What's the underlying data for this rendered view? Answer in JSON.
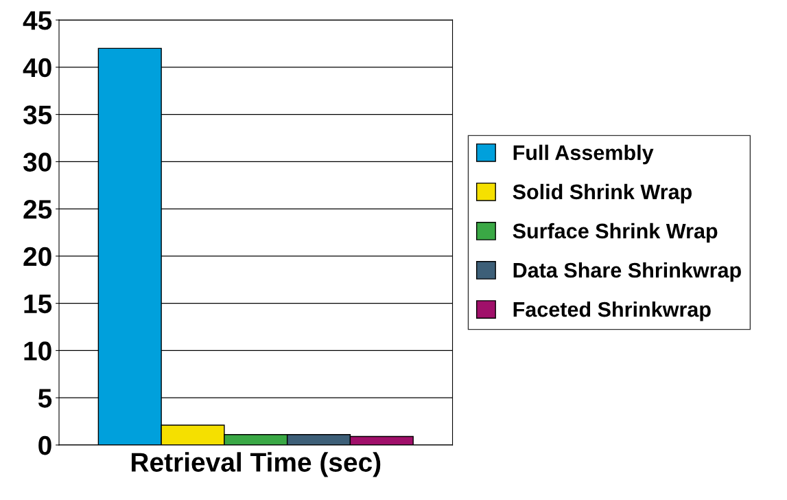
{
  "chart_data": {
    "type": "bar",
    "xlabel": "Retrieval Time (sec)",
    "categories": [
      null
    ],
    "series": [
      {
        "name": "Full Assembly",
        "color": "#00a0dc",
        "values": [
          42
        ]
      },
      {
        "name": "Solid Shrink Wrap",
        "color": "#f5e000",
        "values": [
          2.1
        ]
      },
      {
        "name": "Surface Shrink Wrap",
        "color": "#3aa845",
        "values": [
          1.1
        ]
      },
      {
        "name": "Data Share Shrinkwrap",
        "color": "#3d5f78",
        "values": [
          1.1
        ]
      },
      {
        "name": "Faceted Shrinkwrap",
        "color": "#a0106a",
        "values": [
          0.9
        ]
      }
    ],
    "ylim": [
      0,
      45
    ],
    "yticks": [
      0,
      5,
      10,
      15,
      20,
      25,
      30,
      35,
      40,
      45
    ],
    "grid": "y",
    "legend": "right"
  }
}
